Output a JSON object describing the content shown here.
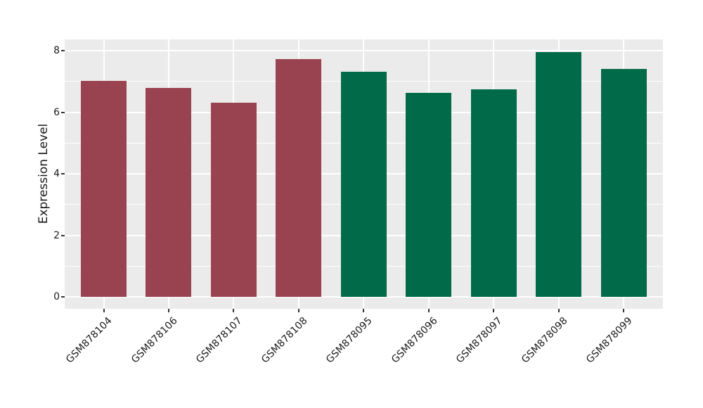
{
  "chart_data": {
    "type": "bar",
    "title": "",
    "xlabel": "",
    "ylabel": "Expression Level",
    "ylim": [
      0,
      8.4
    ],
    "yticks": [
      "0",
      "2",
      "4",
      "6",
      "8"
    ],
    "ytick_values": [
      0,
      2,
      4,
      6,
      8
    ],
    "yminor_values": [
      1,
      3,
      5,
      7
    ],
    "grid": "on",
    "legend_position": "none",
    "categories": [
      "GSM878104",
      "GSM878106",
      "GSM878107",
      "GSM878108",
      "GSM878095",
      "GSM878096",
      "GSM878097",
      "GSM878098",
      "GSM878099"
    ],
    "values": [
      7.02,
      6.79,
      6.32,
      7.73,
      7.32,
      6.62,
      6.75,
      7.96,
      7.4
    ],
    "bar_group_keys": [
      "groupA",
      "groupA",
      "groupA",
      "groupA",
      "groupB",
      "groupB",
      "groupB",
      "groupB",
      "groupB"
    ],
    "colors": {
      "groupA": "#9A4350",
      "groupB": "#016A48",
      "panel_background": "#EBEBEB",
      "figure_background": "#FFFFFF",
      "gridline": "#FFFFFF",
      "tick_mark": "#333333",
      "text": "#1A1A1A"
    }
  }
}
